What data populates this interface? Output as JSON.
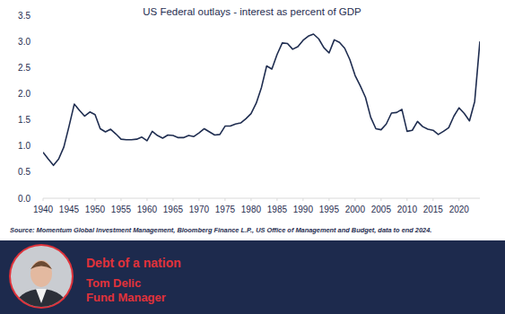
{
  "chart_data": {
    "type": "line",
    "title": "US Federal outlays - interest as percent of GDP",
    "source": "Source: Momentum Global Investment Management, Bloomberg Finance L.P., US Office of Management and Budget, data to end 2024.",
    "x": [
      1940,
      1941,
      1942,
      1943,
      1944,
      1945,
      1946,
      1947,
      1948,
      1949,
      1950,
      1951,
      1952,
      1953,
      1954,
      1955,
      1956,
      1957,
      1958,
      1959,
      1960,
      1961,
      1962,
      1963,
      1964,
      1965,
      1966,
      1967,
      1968,
      1969,
      1970,
      1971,
      1972,
      1973,
      1974,
      1975,
      1976,
      1977,
      1978,
      1979,
      1980,
      1981,
      1982,
      1983,
      1984,
      1985,
      1986,
      1987,
      1988,
      1989,
      1990,
      1991,
      1992,
      1993,
      1994,
      1995,
      1996,
      1997,
      1998,
      1999,
      2000,
      2001,
      2002,
      2003,
      2004,
      2005,
      2006,
      2007,
      2008,
      2009,
      2010,
      2011,
      2012,
      2013,
      2014,
      2015,
      2016,
      2017,
      2018,
      2019,
      2020,
      2021,
      2022,
      2023,
      2024
    ],
    "values": [
      0.88,
      0.75,
      0.63,
      0.75,
      0.98,
      1.38,
      1.8,
      1.68,
      1.57,
      1.65,
      1.6,
      1.33,
      1.27,
      1.32,
      1.23,
      1.13,
      1.12,
      1.12,
      1.13,
      1.17,
      1.1,
      1.28,
      1.2,
      1.15,
      1.21,
      1.2,
      1.16,
      1.16,
      1.2,
      1.18,
      1.25,
      1.33,
      1.27,
      1.21,
      1.22,
      1.38,
      1.38,
      1.42,
      1.44,
      1.52,
      1.62,
      1.82,
      2.12,
      2.53,
      2.47,
      2.75,
      2.97,
      2.96,
      2.85,
      2.9,
      3.02,
      3.1,
      3.14,
      3.05,
      2.88,
      2.78,
      3.03,
      2.98,
      2.87,
      2.65,
      2.35,
      2.15,
      1.93,
      1.55,
      1.33,
      1.31,
      1.42,
      1.63,
      1.64,
      1.7,
      1.28,
      1.3,
      1.47,
      1.37,
      1.32,
      1.3,
      1.22,
      1.28,
      1.35,
      1.57,
      1.73,
      1.62,
      1.48,
      1.85,
      3.0
    ],
    "color": "#1f2d50",
    "xlim": [
      1940,
      2024
    ],
    "xticks": [
      1940,
      1945,
      1950,
      1955,
      1960,
      1965,
      1970,
      1975,
      1980,
      1985,
      1990,
      1995,
      2000,
      2005,
      2010,
      2015,
      2020
    ],
    "ylim": [
      0,
      3.5
    ],
    "yticks": [
      {
        "value": 0,
        "label": "0.0"
      },
      {
        "value": 0.5,
        "label": "0.5"
      },
      {
        "value": 1,
        "label": "1.0"
      },
      {
        "value": 1.5,
        "label": "1.5"
      },
      {
        "value": 2,
        "label": "2.0"
      },
      {
        "value": 2.5,
        "label": "2.5"
      },
      {
        "value": 3,
        "label": "3.0"
      },
      {
        "value": 3.5,
        "label": "3.5"
      }
    ],
    "grid": false
  },
  "footer": {
    "heading": "Debt of a nation",
    "name": "Tom Delic",
    "role": "Fund Manager"
  }
}
